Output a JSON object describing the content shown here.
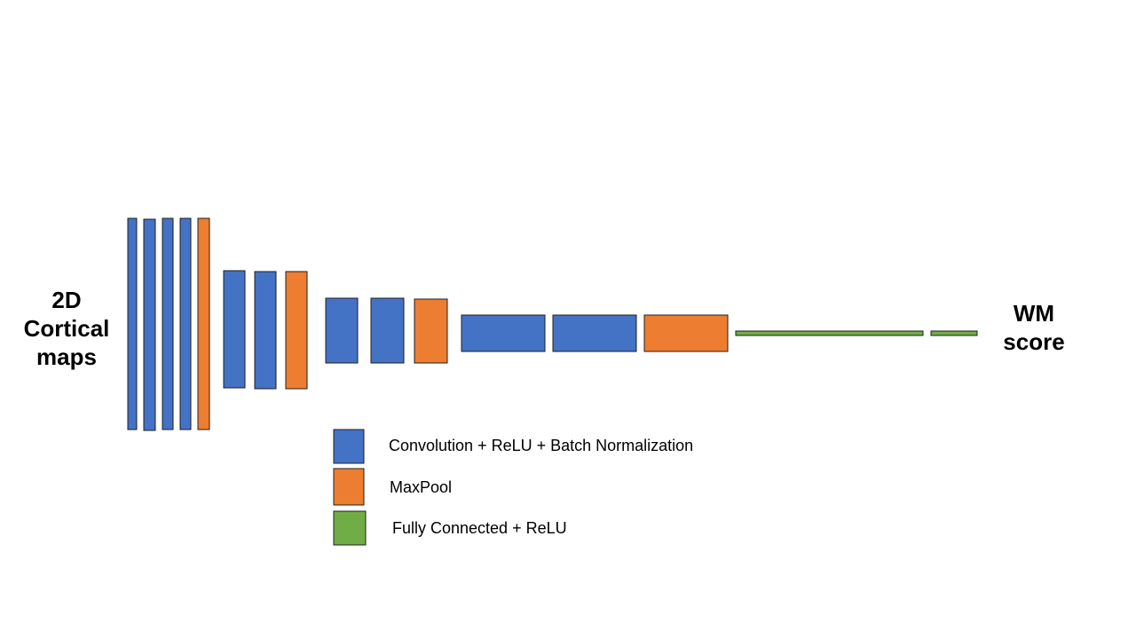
{
  "input_label": {
    "lines": [
      "2D",
      "Cortical",
      "maps"
    ]
  },
  "output_label": {
    "lines": [
      "WM",
      "score"
    ]
  },
  "legend": {
    "items": [
      {
        "label": "Convolution + ReLU + Batch Normalization"
      },
      {
        "label": "MaxPool"
      },
      {
        "label": "Fully Connected + ReLU"
      }
    ]
  }
}
